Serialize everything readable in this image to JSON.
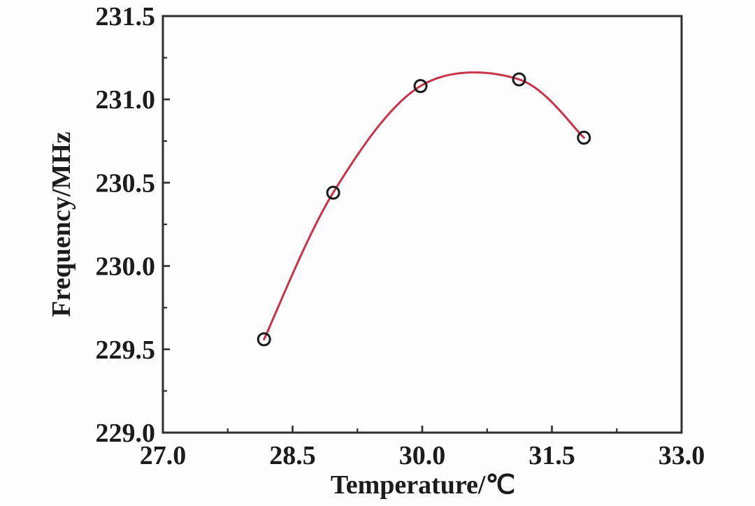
{
  "figure": {
    "background": "#fdfdfd"
  },
  "colors": {
    "axis": "#2e2e2e",
    "text": "#1c1c1c",
    "curve": "#c9334a",
    "marker": "#1b1b1b"
  },
  "chart_data": {
    "type": "scatter",
    "title": "",
    "xlabel": "Temperature/℃",
    "ylabel": "Frequency/MHz",
    "xlim": [
      27.0,
      33.0
    ],
    "ylim": [
      229.0,
      231.5
    ],
    "grid": false,
    "legend": "none",
    "axes_style": "full-box-inward-ticks",
    "x_ticks": {
      "major": [
        27.0,
        28.5,
        30.0,
        31.5,
        33.0
      ],
      "labels": [
        "27.0",
        "28.5",
        "30.0",
        "31.5",
        "33.0"
      ],
      "minor": [
        27.75,
        29.25,
        30.75,
        32.25
      ]
    },
    "y_ticks": {
      "major": [
        229.0,
        229.5,
        230.0,
        230.5,
        231.0,
        231.5
      ],
      "labels": [
        "229.0",
        "229.5",
        "230.0",
        "230.5",
        "231.0",
        "231.5"
      ],
      "minor": [
        229.25,
        229.75,
        230.25,
        230.75,
        231.25
      ]
    },
    "series": [
      {
        "name": "measured-points",
        "type": "scatter",
        "marker": "open-circle",
        "marker_color": "#1b1b1b",
        "points": [
          [
            28.17,
            229.56
          ],
          [
            28.97,
            230.44
          ],
          [
            29.98,
            231.08
          ],
          [
            31.12,
            231.12
          ],
          [
            31.87,
            230.77
          ]
        ]
      },
      {
        "name": "fitted-curve",
        "type": "line",
        "color": "#c9334a",
        "style": "smooth-through-points",
        "apex": [
          30.65,
          231.19
        ]
      }
    ]
  }
}
